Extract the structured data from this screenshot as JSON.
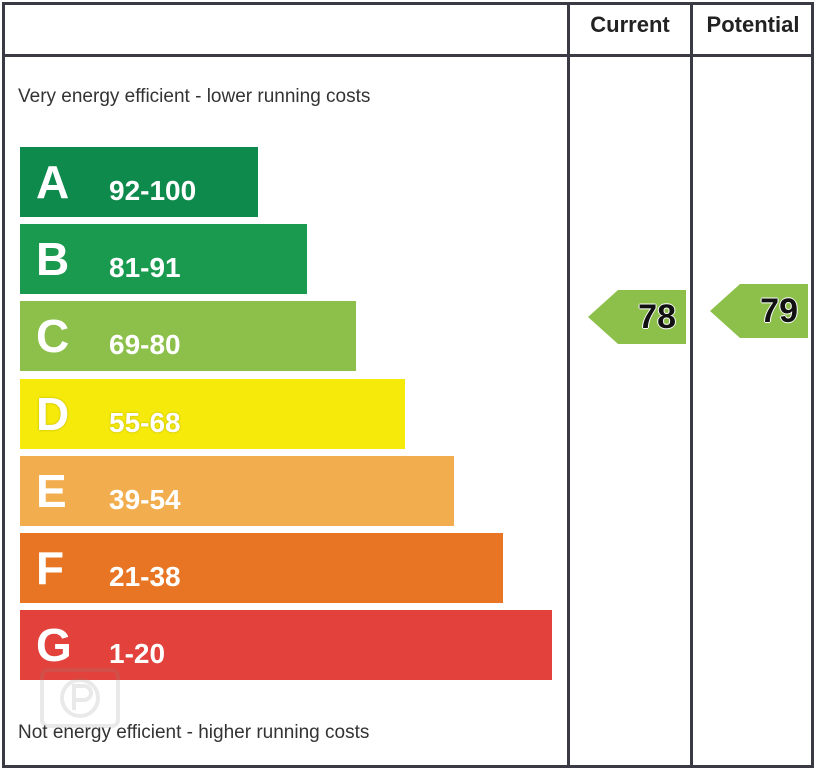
{
  "chart_data": {
    "type": "bar",
    "header": {
      "current_label": "Current",
      "potential_label": "Potential"
    },
    "top_note": "Very energy efficient - lower running costs",
    "bottom_note": "Not energy efficient - higher running costs",
    "bands": [
      {
        "letter": "A",
        "range": "92-100",
        "color": "#0e8a4c"
      },
      {
        "letter": "B",
        "range": "81-91",
        "color": "#1a9a4f"
      },
      {
        "letter": "C",
        "range": "69-80",
        "color": "#8cc04b"
      },
      {
        "letter": "D",
        "range": "55-68",
        "color": "#f5ea0a"
      },
      {
        "letter": "E",
        "range": "39-54",
        "color": "#f2ae4e"
      },
      {
        "letter": "F",
        "range": "21-38",
        "color": "#e87524"
      },
      {
        "letter": "G",
        "range": "1-20",
        "color": "#e2413c"
      }
    ],
    "current": {
      "value": "78",
      "color": "#8cc04b"
    },
    "potential": {
      "value": "79",
      "color": "#8cc04b"
    }
  },
  "watermark": {
    "icon": "p-logo-icon"
  }
}
